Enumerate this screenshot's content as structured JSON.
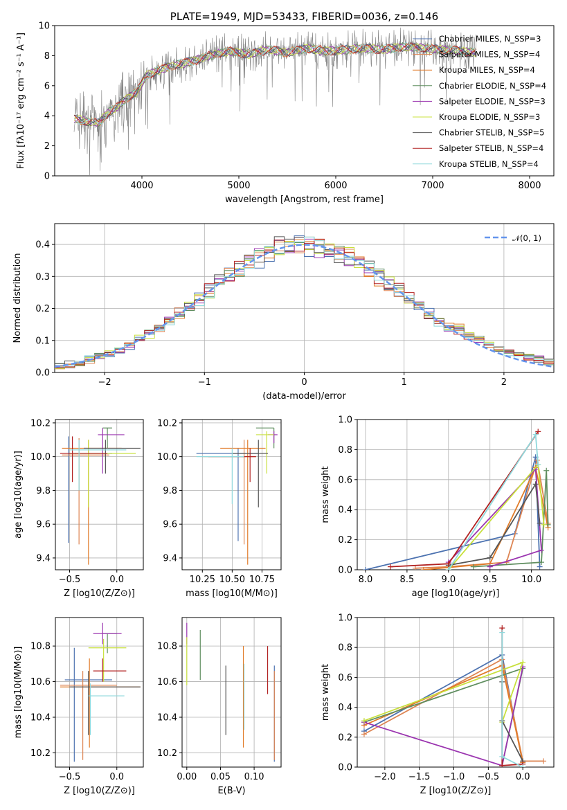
{
  "chart_data": [
    {
      "id": "spectrum",
      "type": "line",
      "title": "PLATE=1949, MJD=53433, FIBERID=0036, z=0.146",
      "xlabel": "wavelength [Angstrom, rest frame]",
      "ylabel": "Flux [fλ10⁻¹⁷ erg cm⁻² s⁻¹ A⁻¹]",
      "xlim": [
        3100,
        8250
      ],
      "ylim": [
        0,
        10
      ],
      "xticks": [
        "4000",
        "5000",
        "6000",
        "7000",
        "8000"
      ],
      "yticks": [
        "0",
        "2",
        "4",
        "6",
        "8",
        "10"
      ],
      "data_color": "#808080",
      "data_x": [
        3300,
        3450,
        3550,
        3650,
        3750,
        3850,
        3950,
        4050,
        4200,
        4350,
        4500,
        4700,
        4900,
        5100,
        5300,
        5500,
        5700,
        5900,
        6100,
        6300,
        6500,
        6700,
        6900,
        7100,
        7300,
        7450
      ],
      "data_y": [
        3.8,
        3.6,
        3.5,
        4.2,
        4.6,
        5.2,
        5.6,
        6.7,
        7.1,
        7.4,
        7.6,
        8.0,
        8.3,
        8.1,
        8.4,
        8.2,
        8.5,
        8.3,
        8.4,
        8.5,
        8.4,
        8.6,
        8.5,
        8.4,
        8.3,
        8.2
      ],
      "legend": [
        {
          "label": "Chabrier MILES, N_SSP=3",
          "color": "#4c72b0"
        },
        {
          "label": "Salpeter MILES, N_SSP=4",
          "color": "#dd8452"
        },
        {
          "label": "Kroupa MILES, N_SSP=4",
          "color": "#e17c2a"
        },
        {
          "label": "Chabrier ELODIE, N_SSP=4",
          "color": "#5f8e5f"
        },
        {
          "label": "Salpeter ELODIE, N_SSP=3",
          "color": "#9b35b0"
        },
        {
          "label": "Kroupa ELODIE, N_SSP=3",
          "color": "#c8e03c"
        },
        {
          "label": "Chabrier STELIB, N_SSP=5",
          "color": "#555555"
        },
        {
          "label": "Salpeter STELIB, N_SSP=4",
          "color": "#b22222"
        },
        {
          "label": "Kroupa STELIB, N_SSP=4",
          "color": "#8fd8dc"
        }
      ]
    },
    {
      "id": "residuals",
      "type": "line",
      "xlabel": "(data-model)/error",
      "ylabel": "Normed distribution",
      "xlim": [
        -2.5,
        2.5
      ],
      "ylim": [
        0,
        0.465
      ],
      "xticks": [
        "−2",
        "−1",
        "0",
        "1",
        "2"
      ],
      "yticks": [
        "0.0",
        "0.1",
        "0.2",
        "0.3",
        "0.4"
      ],
      "legend": [
        {
          "label": "𝒩(0, 1)",
          "color": "#6495ed"
        }
      ],
      "grid": true
    },
    {
      "id": "age-vs-Z",
      "type": "scatter",
      "xlabel": "Z [log10(Z/Z⊙)]",
      "ylabel": "age [log10(age/yr)]",
      "xlim": [
        -0.65,
        0.28
      ],
      "ylim": [
        9.33,
        10.22
      ],
      "xticks": [
        "−0.5",
        "0.0"
      ],
      "yticks": [
        "9.4",
        "9.6",
        "9.8",
        "10.0",
        "10.2"
      ],
      "grid": true
    },
    {
      "id": "age-vs-mass",
      "type": "scatter",
      "xlabel": "mass [log10(M/M⊙)]",
      "xlim": [
        10.08,
        10.91
      ],
      "ylim": [
        9.33,
        10.22
      ],
      "xticks": [
        "10.25",
        "10.50",
        "10.75"
      ],
      "yticks": [
        "9.4",
        "9.6",
        "9.8",
        "10.0",
        "10.2"
      ],
      "grid": true
    },
    {
      "id": "weight-vs-age",
      "type": "line",
      "xlabel": "age [log10(age/yr)]",
      "ylabel": "mass weight",
      "xlim": [
        7.9,
        10.27
      ],
      "ylim": [
        0,
        1
      ],
      "xticks": [
        "8.0",
        "8.5",
        "9.0",
        "9.5",
        "10.0"
      ],
      "yticks": [
        "0.0",
        "0.2",
        "0.4",
        "0.6",
        "0.8",
        "1.0"
      ],
      "grid": true
    },
    {
      "id": "mass-vs-Z",
      "type": "scatter",
      "xlabel": "Z [log10(Z/Z⊙)]",
      "ylabel": "mass [log10(M/M⊙)]",
      "xlim": [
        -0.65,
        0.28
      ],
      "ylim": [
        10.12,
        10.96
      ],
      "xticks": [
        "−0.5",
        "0.0"
      ],
      "yticks": [
        "10.2",
        "10.4",
        "10.6",
        "10.8"
      ],
      "grid": true
    },
    {
      "id": "mass-vs-ebv",
      "type": "scatter",
      "xlabel": "E(B-V)",
      "xlim": [
        -0.007,
        0.14
      ],
      "ylim": [
        10.12,
        10.96
      ],
      "xticks": [
        "0.00",
        "0.05",
        "0.10"
      ],
      "yticks": [
        "10.2",
        "10.4",
        "10.6",
        "10.8"
      ],
      "grid": true
    },
    {
      "id": "weight-vs-Z",
      "type": "line",
      "xlabel": "Z [log10(Z/Z⊙)]",
      "ylabel": "mass weight",
      "xlim": [
        -2.4,
        0.45
      ],
      "ylim": [
        0,
        1
      ],
      "xticks": [
        "−2.0",
        "−1.5",
        "−1.0",
        "−0.5",
        "0.0"
      ],
      "yticks": [
        "0.0",
        "0.2",
        "0.4",
        "0.6",
        "0.8",
        "1.0"
      ],
      "grid": true
    }
  ]
}
